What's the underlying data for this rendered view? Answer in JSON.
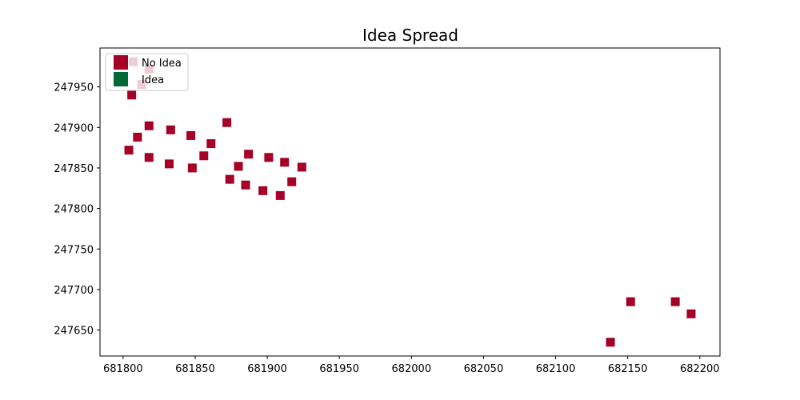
{
  "chart_data": {
    "type": "scatter",
    "title": "Idea Spread",
    "xlabel": "",
    "ylabel": "",
    "xlim": [
      681784,
      682214
    ],
    "ylim": [
      247618,
      247998
    ],
    "x_ticks": [
      {
        "value": 681800,
        "label": "681800"
      },
      {
        "value": 681850,
        "label": "681850"
      },
      {
        "value": 681900,
        "label": "681900"
      },
      {
        "value": 681950,
        "label": "681950"
      },
      {
        "value": 682000,
        "label": "682000"
      },
      {
        "value": 682050,
        "label": "682050"
      },
      {
        "value": 682100,
        "label": "682100"
      },
      {
        "value": 682150,
        "label": "682150"
      },
      {
        "value": 682200,
        "label": "682200"
      }
    ],
    "y_ticks": [
      {
        "value": 247650,
        "label": "247650"
      },
      {
        "value": 247700,
        "label": "247700"
      },
      {
        "value": 247750,
        "label": "247750"
      },
      {
        "value": 247800,
        "label": "247800"
      },
      {
        "value": 247850,
        "label": "247850"
      },
      {
        "value": 247900,
        "label": "247900"
      },
      {
        "value": 247950,
        "label": "247950"
      }
    ],
    "grid": false,
    "legend_position": "top-left",
    "series": [
      {
        "name": "No Idea",
        "color": "#a50026",
        "marker": "square",
        "points": [
          {
            "x": 681807,
            "y": 247981
          },
          {
            "x": 681818,
            "y": 247972
          },
          {
            "x": 681813,
            "y": 247953
          },
          {
            "x": 681806,
            "y": 247940
          },
          {
            "x": 681818,
            "y": 247902
          },
          {
            "x": 681833,
            "y": 247897
          },
          {
            "x": 681872,
            "y": 247906
          },
          {
            "x": 681810,
            "y": 247888
          },
          {
            "x": 681847,
            "y": 247890
          },
          {
            "x": 681861,
            "y": 247880
          },
          {
            "x": 681804,
            "y": 247872
          },
          {
            "x": 681818,
            "y": 247863
          },
          {
            "x": 681856,
            "y": 247865
          },
          {
            "x": 681887,
            "y": 247867
          },
          {
            "x": 681901,
            "y": 247863
          },
          {
            "x": 681832,
            "y": 247855
          },
          {
            "x": 681848,
            "y": 247850
          },
          {
            "x": 681880,
            "y": 247852
          },
          {
            "x": 681912,
            "y": 247857
          },
          {
            "x": 681924,
            "y": 247851
          },
          {
            "x": 681874,
            "y": 247836
          },
          {
            "x": 681885,
            "y": 247829
          },
          {
            "x": 681917,
            "y": 247833
          },
          {
            "x": 681897,
            "y": 247822
          },
          {
            "x": 681909,
            "y": 247816
          },
          {
            "x": 682152,
            "y": 247685
          },
          {
            "x": 682183,
            "y": 247685
          },
          {
            "x": 682194,
            "y": 247670
          },
          {
            "x": 682138,
            "y": 247635
          }
        ]
      },
      {
        "name": "Idea",
        "color": "#006837",
        "marker": "square",
        "points": []
      }
    ]
  }
}
